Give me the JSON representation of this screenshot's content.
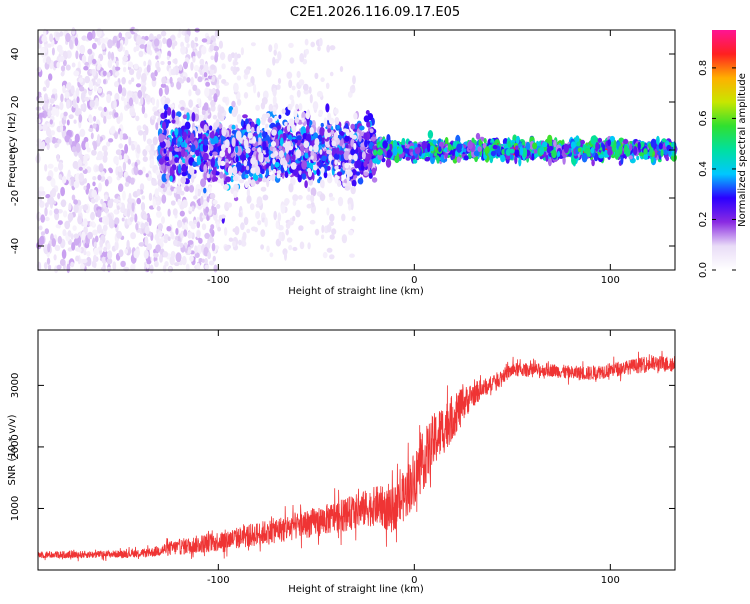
{
  "title": "C2E1.2026.116.09.17.E05",
  "colors": {
    "signal": "#ef3434",
    "background": "#ffffff",
    "axis": "#000000"
  },
  "chart_data": [
    {
      "type": "heatmap",
      "name": "spectrogram",
      "xlabel": "Height of straight line (km)",
      "ylabel": "Frequency (Hz)",
      "xlim": [
        -192,
        133
      ],
      "ylim": [
        -50,
        50
      ],
      "x_ticks": [
        -100,
        0,
        100
      ],
      "x_tick_labels": [
        "-100",
        "0",
        "100"
      ],
      "y_ticks": [
        -40,
        -20,
        0,
        20,
        40
      ],
      "y_tick_labels": [
        "-40",
        "-20",
        "0",
        "20",
        "40"
      ],
      "colorbar": {
        "label": "Normalized spectral amplitude",
        "range": [
          0,
          0.95
        ],
        "ticks": [
          0.0,
          0.2,
          0.4,
          0.6,
          0.8
        ],
        "tick_labels": [
          "0.0",
          "0.2",
          "0.4",
          "0.6",
          "0.8"
        ],
        "colormap": [
          "#ffffff",
          "#e9dcf7",
          "#8a2be2",
          "#2b00ff",
          "#00c8ff",
          "#00e0a0",
          "#30e030",
          "#c8e600",
          "#ffb000",
          "#ff2020",
          "#ff1493"
        ]
      },
      "description_regions": [
        {
          "x_range": [
            -192,
            -100
          ],
          "freq_spread": 50,
          "amplitude": 0.1
        },
        {
          "x_range": [
            -130,
            -20
          ],
          "freq_spread": 10,
          "amplitude": 0.3
        },
        {
          "x_range": [
            -20,
            133
          ],
          "freq_spread": 3,
          "amplitude": 0.45
        }
      ]
    },
    {
      "type": "line",
      "name": "snr",
      "xlabel": "Height of straight line (km)",
      "ylabel": "SNR (10 * v/v)",
      "xlim": [
        -192,
        133
      ],
      "ylim": [
        0,
        3900
      ],
      "x_ticks": [
        -100,
        0,
        100
      ],
      "x_tick_labels": [
        "-100",
        "0",
        "100"
      ],
      "y_ticks": [
        1000,
        2000,
        3000
      ],
      "y_tick_labels": [
        "1000",
        "2000",
        "3000"
      ],
      "series": [
        {
          "name": "SNR",
          "color": "#ef3434",
          "x": [
            -192,
            -170,
            -150,
            -135,
            -125,
            -110,
            -90,
            -70,
            -50,
            -35,
            -25,
            -18,
            -12,
            -5,
            0,
            5,
            10,
            15,
            20,
            25,
            30,
            35,
            40,
            45,
            50,
            60,
            70,
            80,
            90,
            100,
            110,
            120,
            133
          ],
          "mean": [
            250,
            250,
            260,
            280,
            350,
            420,
            520,
            650,
            780,
            900,
            1000,
            1050,
            950,
            1200,
            1500,
            1800,
            2100,
            2300,
            2500,
            2700,
            2850,
            2950,
            3050,
            3150,
            3250,
            3250,
            3250,
            3200,
            3200,
            3250,
            3300,
            3350,
            3350
          ],
          "spread": [
            100,
            100,
            100,
            120,
            200,
            250,
            300,
            350,
            400,
            450,
            500,
            550,
            600,
            700,
            750,
            800,
            750,
            700,
            600,
            450,
            350,
            250,
            200,
            200,
            200,
            180,
            180,
            200,
            200,
            200,
            200,
            220,
            220
          ]
        }
      ]
    }
  ]
}
